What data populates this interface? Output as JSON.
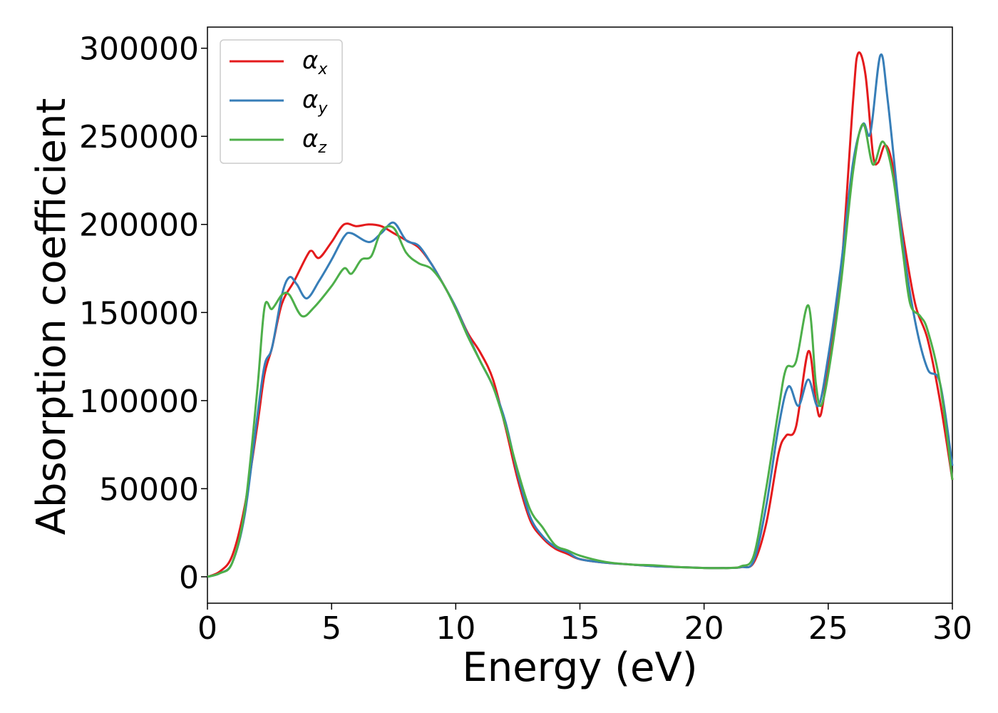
{
  "chart_data": {
    "type": "line",
    "title": "",
    "xlabel": "Energy (eV)",
    "ylabel": "Absorption coefficient",
    "xlim": [
      0,
      30
    ],
    "ylim": [
      -15000,
      312000
    ],
    "xticks": [
      0,
      5,
      10,
      15,
      20,
      25,
      30
    ],
    "yticks": [
      0,
      50000,
      100000,
      150000,
      200000,
      250000,
      300000
    ],
    "grid": false,
    "legend_position": "top-left",
    "series": [
      {
        "name": "α",
        "subscript": "x",
        "color": "#e41a1c",
        "points": [
          [
            0,
            0
          ],
          [
            0.5,
            3000
          ],
          [
            1,
            12000
          ],
          [
            1.5,
            40000
          ],
          [
            2,
            85000
          ],
          [
            2.3,
            115000
          ],
          [
            2.6,
            130000
          ],
          [
            3,
            155000
          ],
          [
            3.5,
            168000
          ],
          [
            4,
            182000
          ],
          [
            4.2,
            185000
          ],
          [
            4.5,
            181000
          ],
          [
            5,
            190000
          ],
          [
            5.5,
            200000
          ],
          [
            6,
            199000
          ],
          [
            6.5,
            200000
          ],
          [
            7,
            199000
          ],
          [
            7.5,
            195000
          ],
          [
            8,
            191000
          ],
          [
            8.5,
            187000
          ],
          [
            9,
            178000
          ],
          [
            9.5,
            166000
          ],
          [
            10,
            153000
          ],
          [
            10.5,
            138000
          ],
          [
            11,
            127000
          ],
          [
            11.5,
            112000
          ],
          [
            12,
            85000
          ],
          [
            12.5,
            55000
          ],
          [
            13,
            32000
          ],
          [
            13.5,
            22000
          ],
          [
            14,
            16000
          ],
          [
            14.5,
            13000
          ],
          [
            15,
            10000
          ],
          [
            16,
            8000
          ],
          [
            17,
            7000
          ],
          [
            18,
            6000
          ],
          [
            19,
            5500
          ],
          [
            20,
            5000
          ],
          [
            21,
            5000
          ],
          [
            21.5,
            5500
          ],
          [
            22,
            8000
          ],
          [
            22.5,
            30000
          ],
          [
            23,
            70000
          ],
          [
            23.3,
            80000
          ],
          [
            23.7,
            85000
          ],
          [
            24.2,
            128000
          ],
          [
            24.5,
            100000
          ],
          [
            24.7,
            92000
          ],
          [
            25,
            120000
          ],
          [
            25.5,
            170000
          ],
          [
            26,
            270000
          ],
          [
            26.2,
            297000
          ],
          [
            26.5,
            285000
          ],
          [
            26.8,
            240000
          ],
          [
            27,
            235000
          ],
          [
            27.3,
            245000
          ],
          [
            27.6,
            233000
          ],
          [
            28,
            195000
          ],
          [
            28.5,
            155000
          ],
          [
            29,
            135000
          ],
          [
            29.5,
            100000
          ],
          [
            30,
            55000
          ]
        ]
      },
      {
        "name": "α",
        "subscript": "y",
        "color": "#377eb8",
        "points": [
          [
            0,
            0
          ],
          [
            0.5,
            2000
          ],
          [
            1,
            8000
          ],
          [
            1.5,
            35000
          ],
          [
            2,
            90000
          ],
          [
            2.3,
            120000
          ],
          [
            2.6,
            130000
          ],
          [
            3,
            160000
          ],
          [
            3.3,
            170000
          ],
          [
            3.6,
            166000
          ],
          [
            4,
            158000
          ],
          [
            4.5,
            168000
          ],
          [
            5,
            180000
          ],
          [
            5.5,
            193000
          ],
          [
            5.8,
            195000
          ],
          [
            6.5,
            190000
          ],
          [
            7,
            195000
          ],
          [
            7.5,
            201000
          ],
          [
            8,
            191000
          ],
          [
            8.5,
            188000
          ],
          [
            9,
            178000
          ],
          [
            9.5,
            166000
          ],
          [
            10,
            153000
          ],
          [
            10.5,
            137000
          ],
          [
            11,
            122000
          ],
          [
            11.5,
            108000
          ],
          [
            12,
            88000
          ],
          [
            12.5,
            58000
          ],
          [
            13,
            34000
          ],
          [
            13.5,
            23000
          ],
          [
            14,
            17000
          ],
          [
            14.5,
            14000
          ],
          [
            15,
            10000
          ],
          [
            16,
            8000
          ],
          [
            17,
            7000
          ],
          [
            18,
            6000
          ],
          [
            19,
            5500
          ],
          [
            20,
            5000
          ],
          [
            21,
            5000
          ],
          [
            21.5,
            5500
          ],
          [
            22,
            9000
          ],
          [
            22.5,
            40000
          ],
          [
            23,
            85000
          ],
          [
            23.4,
            108000
          ],
          [
            23.8,
            97000
          ],
          [
            24.2,
            112000
          ],
          [
            24.6,
            97000
          ],
          [
            25,
            125000
          ],
          [
            25.5,
            175000
          ],
          [
            26,
            235000
          ],
          [
            26.4,
            257000
          ],
          [
            26.7,
            252000
          ],
          [
            27.1,
            296000
          ],
          [
            27.4,
            270000
          ],
          [
            28,
            190000
          ],
          [
            28.5,
            145000
          ],
          [
            29,
            118000
          ],
          [
            29.5,
            110000
          ],
          [
            30,
            63000
          ]
        ]
      },
      {
        "name": "α",
        "subscript": "z",
        "color": "#4daf4a",
        "points": [
          [
            0,
            0
          ],
          [
            0.5,
            2000
          ],
          [
            1,
            8000
          ],
          [
            1.5,
            38000
          ],
          [
            2,
            105000
          ],
          [
            2.3,
            153000
          ],
          [
            2.6,
            152000
          ],
          [
            3,
            160000
          ],
          [
            3.3,
            160000
          ],
          [
            3.8,
            148000
          ],
          [
            4.3,
            153000
          ],
          [
            5,
            165000
          ],
          [
            5.5,
            175000
          ],
          [
            5.8,
            172000
          ],
          [
            6.2,
            180000
          ],
          [
            6.6,
            182000
          ],
          [
            7,
            196000
          ],
          [
            7.5,
            198000
          ],
          [
            8,
            184000
          ],
          [
            8.5,
            178000
          ],
          [
            9,
            175000
          ],
          [
            9.5,
            166000
          ],
          [
            10,
            152000
          ],
          [
            10.5,
            136000
          ],
          [
            11,
            122000
          ],
          [
            11.5,
            108000
          ],
          [
            12,
            86000
          ],
          [
            12.5,
            60000
          ],
          [
            13,
            38000
          ],
          [
            13.5,
            28000
          ],
          [
            14,
            18000
          ],
          [
            14.5,
            15000
          ],
          [
            15,
            12000
          ],
          [
            16,
            8500
          ],
          [
            17,
            7000
          ],
          [
            18,
            6500
          ],
          [
            19,
            5500
          ],
          [
            20,
            5000
          ],
          [
            21,
            5000
          ],
          [
            21.5,
            6000
          ],
          [
            22,
            12000
          ],
          [
            22.5,
            50000
          ],
          [
            23,
            95000
          ],
          [
            23.3,
            118000
          ],
          [
            23.7,
            122000
          ],
          [
            24.2,
            154000
          ],
          [
            24.5,
            110000
          ],
          [
            24.7,
            97000
          ],
          [
            25,
            115000
          ],
          [
            25.5,
            165000
          ],
          [
            26,
            230000
          ],
          [
            26.4,
            257000
          ],
          [
            26.8,
            234000
          ],
          [
            27.2,
            247000
          ],
          [
            27.6,
            228000
          ],
          [
            28,
            185000
          ],
          [
            28.3,
            155000
          ],
          [
            28.7,
            148000
          ],
          [
            29,
            140000
          ],
          [
            29.5,
            110000
          ],
          [
            30,
            55000
          ]
        ]
      }
    ]
  }
}
